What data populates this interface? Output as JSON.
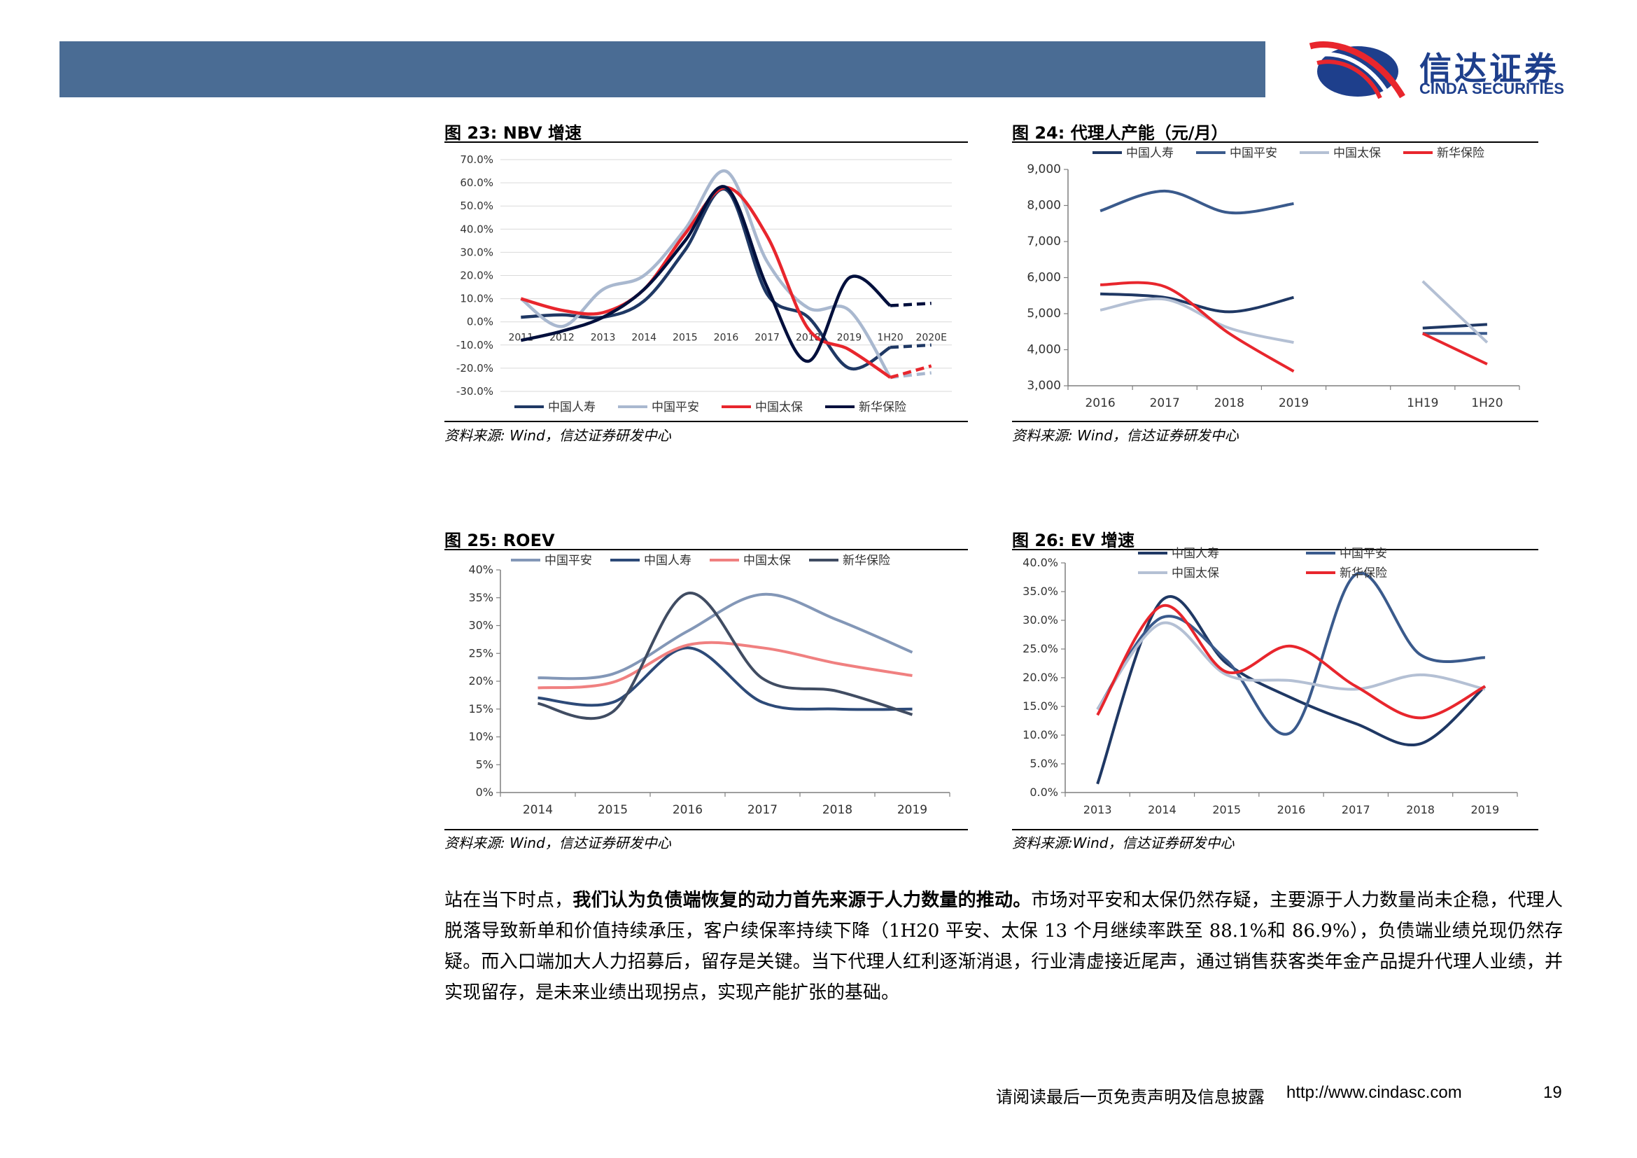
{
  "header": {
    "logo_cn": "信达证券",
    "logo_en": "CINDA SECURITIES",
    "colors": {
      "bar": "#4a6c94",
      "logo_red": "#e8262d",
      "logo_blue": "#1e3f8c"
    }
  },
  "figures": [
    {
      "title": "图 23:  NBV 增速",
      "source": "资料来源: Wind，信达证券研发中心"
    },
    {
      "title": "图 24:  代理人产能（元/月）",
      "source": "资料来源: Wind，信达证券研发中心"
    },
    {
      "title": "图 25:  ROEV",
      "source": "资料来源: Wind，信达证券研发中心"
    },
    {
      "title": "图 26:  EV 增速",
      "source": "资料来源:Wind，信达证券研发中心"
    }
  ],
  "chart_data": [
    {
      "type": "line",
      "title": "图 23: NBV 增速",
      "categories": [
        "2011",
        "2012",
        "2013",
        "2014",
        "2015",
        "2016",
        "2017",
        "2018",
        "2019",
        "1H20",
        "2020E"
      ],
      "y_ticks": [
        "70.0%",
        "60.0%",
        "50.0%",
        "40.0%",
        "30.0%",
        "20.0%",
        "10.0%",
        "0.0%",
        "-10.0%",
        "-20.0%",
        "-30.0%"
      ],
      "ylim": [
        -30,
        70
      ],
      "grid": true,
      "legend_position": "bottom",
      "dashed_segment": "1H20-2020E",
      "series": [
        {
          "name": "中国人寿",
          "color": "#1f3864",
          "values": [
            2,
            3,
            2,
            9,
            31,
            57,
            12,
            2,
            -20,
            -11,
            -10
          ]
        },
        {
          "name": "中国平安",
          "color": "#a9b8cf",
          "values": [
            10,
            -2,
            14,
            20,
            40,
            65,
            26,
            6,
            5,
            -24,
            -22
          ]
        },
        {
          "name": "中国太保",
          "color": "#e8262d",
          "values": [
            10,
            5,
            4,
            14,
            38,
            58,
            37,
            -3,
            -12,
            -24,
            -19
          ]
        },
        {
          "name": "新华保险",
          "color": "#000f3c",
          "values": [
            -8,
            -4,
            2,
            14,
            35,
            58,
            15,
            -17,
            19,
            7,
            8
          ]
        }
      ]
    },
    {
      "type": "line",
      "title": "图 24: 代理人产能（元/月）",
      "categories": [
        "2016",
        "2017",
        "2018",
        "2019",
        "",
        "1H19",
        "1H20"
      ],
      "y_ticks": [
        "9,000",
        "8,000",
        "7,000",
        "6,000",
        "5,000",
        "4,000",
        "3,000"
      ],
      "ylim": [
        3000,
        9000
      ],
      "grid": false,
      "legend_position": "top",
      "series": [
        {
          "name": "中国人寿",
          "color": "#1f3864",
          "values": [
            5550,
            5450,
            5050,
            5450,
            null,
            4600,
            4700
          ]
        },
        {
          "name": "中国平安",
          "color": "#3a5a8c",
          "values": [
            7850,
            8400,
            7800,
            8050,
            null,
            4450,
            4450
          ]
        },
        {
          "name": "中国太保",
          "color": "#b4c0d4",
          "values": [
            5100,
            5400,
            4600,
            4200,
            null,
            5900,
            4200
          ]
        },
        {
          "name": "新华保险",
          "color": "#e8262d",
          "values": [
            5800,
            5750,
            4450,
            3400,
            null,
            4450,
            3600
          ]
        }
      ]
    },
    {
      "type": "line",
      "title": "图 25: ROEV",
      "categories": [
        "2014",
        "2015",
        "2016",
        "2017",
        "2018",
        "2019"
      ],
      "y_ticks": [
        "40%",
        "35%",
        "30%",
        "25%",
        "20%",
        "15%",
        "10%",
        "5%",
        "0%"
      ],
      "ylim": [
        0,
        40
      ],
      "grid": false,
      "legend_position": "top",
      "series": [
        {
          "name": "中国平安",
          "color": "#8397b7",
          "values": [
            20.6,
            21.3,
            29,
            35.6,
            31,
            25.2
          ]
        },
        {
          "name": "中国人寿",
          "color": "#2d4a78",
          "values": [
            17,
            16.2,
            26,
            16.2,
            15,
            15
          ]
        },
        {
          "name": "中国太保",
          "color": "#f08080",
          "values": [
            18.8,
            19.8,
            26.5,
            26,
            23.2,
            21
          ]
        },
        {
          "name": "新华保险",
          "color": "#404c62",
          "values": [
            16,
            14.5,
            35.8,
            20.5,
            18.2,
            14
          ]
        }
      ]
    },
    {
      "type": "line",
      "title": "图 26: EV 增速",
      "categories": [
        "2013",
        "2014",
        "2015",
        "2016",
        "2017",
        "2018",
        "2019"
      ],
      "y_ticks": [
        "40.0%",
        "35.0%",
        "30.0%",
        "25.0%",
        "20.0%",
        "15.0%",
        "10.0%",
        "5.0%",
        "0.0%"
      ],
      "ylim": [
        0,
        40
      ],
      "grid": false,
      "legend_position": "top",
      "series": [
        {
          "name": "中国人寿",
          "color": "#1f3864",
          "values": [
            1.5,
            33.5,
            22.5,
            16.5,
            12,
            8.5,
            18.5
          ]
        },
        {
          "name": "中国平安",
          "color": "#3a5a8c",
          "values": [
            14.5,
            30.5,
            23,
            10.5,
            38,
            24,
            23.5
          ]
        },
        {
          "name": "中国太保",
          "color": "#b4c0d4",
          "values": [
            14.5,
            29.5,
            20.5,
            19.5,
            18,
            20.5,
            18
          ]
        },
        {
          "name": "新华保险",
          "color": "#e8262d",
          "values": [
            13.5,
            32.5,
            21,
            25.5,
            18.5,
            13,
            18.5
          ]
        }
      ]
    }
  ],
  "body": {
    "part1": "站在当下时点，",
    "part2_bold": "我们认为负债端恢复的动力首先来源于人力数量的推动。",
    "part3": "市场对平安和太保仍然存疑，主要源于人力数量尚未企稳，代理人脱落导致新单和价值持续承压，客户续保率持续下降（1H20 平安、太保 13 个月继续率跌至 88.1%和 86.9%），负债端业绩兑现仍然存疑。而入口端加大人力招募后，留存是关键。当下代理人红利逐渐消退，行业清虚接近尾声，通过销售获客类年金产品提升代理人业绩，并实现留存，是未来业绩出现拐点，实现产能扩张的基础。"
  },
  "footer": {
    "disclaimer": "请阅读最后一页免责声明及信息披露",
    "url": "http://www.cindasc.com",
    "page_number": "19"
  }
}
